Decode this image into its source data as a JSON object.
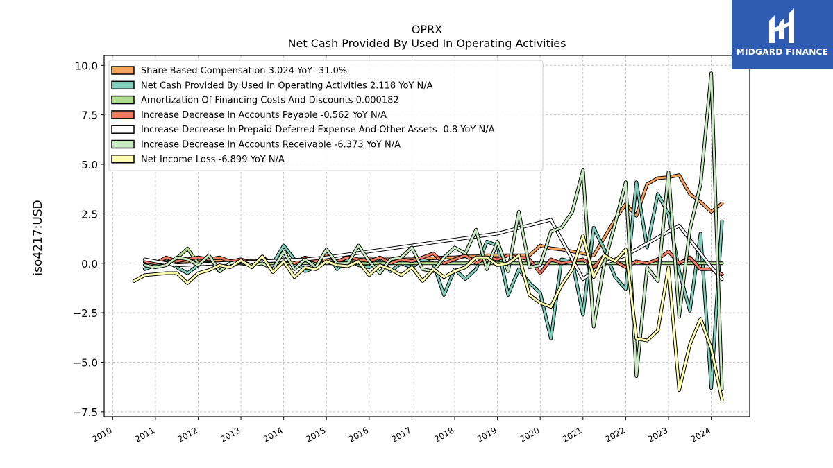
{
  "brand": {
    "name": "MIDGARD FINANCE",
    "bg_color": "#2f5bb3"
  },
  "chart_data": {
    "type": "line",
    "title": "OPRX",
    "subtitle": "Net Cash Provided By Used In Operating Activities",
    "ylabel": "iso4217:USD",
    "xlabel": "",
    "xlim": [
      2009.8,
      2024.9
    ],
    "ylim": [
      -7.75,
      10.5
    ],
    "x_ticks": [
      "2010",
      "2011",
      "2012",
      "2013",
      "2014",
      "2015",
      "2016",
      "2017",
      "2018",
      "2019",
      "2020",
      "2021",
      "2022",
      "2023",
      "2024"
    ],
    "y_ticks": [
      "10.0",
      "7.5",
      "5.0",
      "2.5",
      "0.0",
      "−2.5",
      "−5.0",
      "−7.5"
    ],
    "y_tick_values": [
      10,
      7.5,
      5,
      2.5,
      0,
      -2.5,
      -5,
      -7.5
    ],
    "grid": true,
    "legend_position": "top-left",
    "series": [
      {
        "name": "Share Based Compensation",
        "legend": "Share Based Compensation  3.024 YoY -31.0%",
        "color": "#f4a460",
        "x": [
          2010.75,
          2011.0,
          2011.25,
          2011.5,
          2011.75,
          2012.0,
          2012.25,
          2012.5,
          2012.75,
          2013.0,
          2013.25,
          2013.5,
          2013.75,
          2014.0,
          2014.25,
          2014.5,
          2014.75,
          2015.0,
          2015.25,
          2015.5,
          2015.75,
          2016.0,
          2016.25,
          2016.5,
          2016.75,
          2017.0,
          2017.25,
          2017.5,
          2017.75,
          2018.0,
          2018.25,
          2018.5,
          2018.75,
          2019.0,
          2019.25,
          2019.5,
          2019.75,
          2020.0,
          2020.25,
          2020.5,
          2020.75,
          2021.0,
          2021.25,
          2021.5,
          2021.75,
          2022.0,
          2022.25,
          2022.5,
          2022.75,
          2023.0,
          2023.25,
          2023.5,
          2023.75,
          2024.0,
          2024.25
        ],
        "y": [
          0.05,
          0.05,
          0.08,
          0.08,
          0.1,
          0.1,
          0.1,
          0.12,
          0.12,
          0.12,
          0.12,
          0.15,
          0.15,
          0.15,
          0.15,
          0.15,
          0.15,
          0.15,
          0.15,
          0.15,
          0.2,
          0.2,
          0.2,
          0.2,
          0.2,
          0.2,
          0.25,
          0.25,
          0.3,
          0.3,
          0.35,
          0.35,
          0.4,
          0.4,
          0.4,
          0.4,
          0.4,
          0.9,
          0.75,
          0.7,
          0.6,
          0.5,
          0.4,
          1.3,
          2.2,
          3.0,
          2.4,
          4.0,
          4.3,
          4.35,
          4.45,
          3.5,
          3.1,
          2.6,
          3.02
        ]
      },
      {
        "name": "Net Cash Provided By Used In Operating Activities",
        "legend": "Net Cash Provided By Used In Operating Activities  2.118 YoY N/A",
        "color": "#7fcdbb",
        "x": [
          2010.75,
          2011.0,
          2011.25,
          2011.5,
          2011.75,
          2012.0,
          2012.25,
          2012.5,
          2012.75,
          2013.0,
          2013.25,
          2013.5,
          2013.75,
          2014.0,
          2014.25,
          2014.5,
          2014.75,
          2015.0,
          2015.25,
          2015.5,
          2015.75,
          2016.0,
          2016.25,
          2016.5,
          2016.75,
          2017.0,
          2017.25,
          2017.5,
          2017.75,
          2018.0,
          2018.25,
          2018.5,
          2018.75,
          2019.0,
          2019.25,
          2019.5,
          2019.75,
          2020.0,
          2020.25,
          2020.5,
          2020.75,
          2021.0,
          2021.25,
          2021.5,
          2021.75,
          2022.0,
          2022.25,
          2022.5,
          2022.75,
          2023.0,
          2023.25,
          2023.5,
          2023.75,
          2024.0,
          2024.25
        ],
        "y": [
          -0.3,
          -0.1,
          0.1,
          -0.2,
          -0.5,
          -0.1,
          0.2,
          -0.4,
          0.0,
          0.0,
          -0.1,
          0.3,
          0.0,
          0.9,
          0.2,
          -0.4,
          -0.2,
          0.6,
          -0.3,
          0.2,
          -0.1,
          -0.2,
          0.3,
          -0.4,
          0.0,
          -0.2,
          0.2,
          0.0,
          -1.6,
          -0.3,
          -0.8,
          -0.3,
          1.1,
          0.9,
          -1.6,
          -0.3,
          -1.0,
          -1.5,
          -3.8,
          0.2,
          0.1,
          -2.6,
          1.8,
          0.7,
          -0.7,
          -1.3,
          4.1,
          0.8,
          3.5,
          2.5,
          -0.4,
          -2.4,
          1.5,
          -6.3,
          2.12
        ]
      },
      {
        "name": "Amortization Of Financing Costs And Discounts",
        "legend": "Amortization Of Financing Costs And Discounts  0.000182",
        "color": "#addd8e",
        "x": [
          2010.75,
          2011.25,
          2011.5,
          2011.75,
          2012.0,
          2012.5,
          2013.0,
          2016.5,
          2017.0,
          2017.5,
          2018.0,
          2018.5,
          2019.0,
          2019.5,
          2020.0,
          2020.5,
          2021.0,
          2021.5,
          2022.0,
          2022.5,
          2023.0,
          2023.5,
          2024.0,
          2024.25
        ],
        "y": [
          0.1,
          0.0,
          0.25,
          0.75,
          0.0,
          0.0,
          0.0,
          0.0,
          0.0,
          0.0,
          0.0,
          0.0,
          0.0,
          0.0,
          0.0,
          0.0,
          0.0,
          0.0,
          0.0,
          0.0,
          0.0,
          0.0,
          0.0,
          0.0
        ]
      },
      {
        "name": "Increase Decrease In Accounts Payable",
        "legend": "Increase Decrease In Accounts Payable  -0.562 YoY N/A",
        "color": "#f07860",
        "x": [
          2010.75,
          2011.0,
          2011.25,
          2011.5,
          2011.75,
          2012.0,
          2012.25,
          2012.5,
          2012.75,
          2013.0,
          2013.25,
          2013.5,
          2013.75,
          2014.0,
          2014.25,
          2014.5,
          2014.75,
          2015.0,
          2015.25,
          2015.5,
          2015.75,
          2016.0,
          2016.25,
          2016.5,
          2016.75,
          2017.0,
          2017.25,
          2017.5,
          2017.75,
          2018.0,
          2018.25,
          2018.5,
          2018.75,
          2019.0,
          2019.25,
          2019.5,
          2019.75,
          2020.0,
          2020.25,
          2020.5,
          2020.75,
          2021.0,
          2021.25,
          2021.5,
          2021.75,
          2022.0,
          2022.25,
          2022.5,
          2022.75,
          2023.0,
          2023.25,
          2023.5,
          2023.75,
          2024.0,
          2024.25
        ],
        "y": [
          0.1,
          0.0,
          0.3,
          0.1,
          0.2,
          0.3,
          0.2,
          0.3,
          0.1,
          0.2,
          0.0,
          0.2,
          0.1,
          0.2,
          0.0,
          0.3,
          0.1,
          0.4,
          0.1,
          0.3,
          0.2,
          0.1,
          0.3,
          0.0,
          0.2,
          0.1,
          0.3,
          0.5,
          0.0,
          0.2,
          0.4,
          0.0,
          0.3,
          0.2,
          0.4,
          0.3,
          0.2,
          -0.5,
          0.2,
          0.0,
          0.1,
          0.2,
          -0.2,
          0.4,
          0.1,
          -0.2,
          0.1,
          0.0,
          0.2,
          0.6,
          0.0,
          0.3,
          -0.3,
          -0.3,
          -0.56
        ]
      },
      {
        "name": "Increase Decrease In Prepaid Deferred Expense And Other Assets",
        "legend": "Increase Decrease In Prepaid Deferred Expense And Other Assets  -0.8 YoY N/A",
        "color": "#ffffff",
        "x": [
          2010.75,
          2011.5,
          2012.5,
          2013.5,
          2014.5,
          2015.0,
          2016.0,
          2017.0,
          2018.0,
          2019.0,
          2020.25,
          2021.0,
          2021.5,
          2022.0,
          2022.5,
          2023.0,
          2023.25,
          2023.75,
          2024.0,
          2024.25
        ],
        "y": [
          0.2,
          -0.1,
          0.0,
          0.1,
          0.2,
          0.3,
          0.6,
          0.9,
          1.2,
          1.5,
          2.2,
          -0.8,
          0.0,
          0.4,
          1.0,
          1.6,
          1.9,
          0.5,
          -0.2,
          -0.8
        ]
      },
      {
        "name": "Increase Decrease In Accounts Receivable",
        "legend": "Increase Decrease In Accounts Receivable  -6.373 YoY N/A",
        "color": "#c7e9c0",
        "x": [
          2010.75,
          2011.0,
          2011.25,
          2011.5,
          2011.75,
          2012.0,
          2012.25,
          2012.5,
          2012.75,
          2013.0,
          2013.25,
          2013.5,
          2013.75,
          2014.0,
          2014.25,
          2014.5,
          2014.75,
          2015.0,
          2015.25,
          2015.5,
          2015.75,
          2016.0,
          2016.25,
          2016.5,
          2016.75,
          2017.0,
          2017.25,
          2017.5,
          2017.75,
          2018.0,
          2018.25,
          2018.5,
          2018.75,
          2019.0,
          2019.25,
          2019.5,
          2019.75,
          2020.0,
          2020.25,
          2020.5,
          2020.75,
          2021.0,
          2021.25,
          2021.5,
          2021.75,
          2022.0,
          2022.25,
          2022.5,
          2022.75,
          2023.0,
          2023.25,
          2023.5,
          2023.75,
          2024.0,
          2024.25
        ],
        "y": [
          -0.1,
          -0.2,
          -0.1,
          0.3,
          0.2,
          -0.1,
          0.4,
          -0.4,
          0.0,
          0.1,
          -0.1,
          0.0,
          -0.3,
          0.6,
          -0.3,
          0.2,
          -0.2,
          0.7,
          0.0,
          0.0,
          0.9,
          0.1,
          -0.5,
          0.2,
          0.3,
          0.8,
          -0.3,
          -0.4,
          0.3,
          0.8,
          0.5,
          1.7,
          -0.3,
          1.1,
          -0.4,
          2.6,
          -0.2,
          -0.1,
          1.6,
          1.8,
          2.6,
          4.7,
          -3.2,
          0.0,
          2.0,
          4.1,
          -5.7,
          -0.2,
          -0.9,
          4.6,
          -2.7,
          1.7,
          4.0,
          9.6,
          -6.37
        ]
      },
      {
        "name": "Net Income Loss",
        "legend": "Net Income Loss  -6.899 YoY N/A",
        "color": "#ffffb0",
        "x": [
          2010.5,
          2010.75,
          2011.0,
          2011.25,
          2011.5,
          2011.75,
          2012.0,
          2012.25,
          2012.5,
          2012.75,
          2013.0,
          2013.25,
          2013.5,
          2013.75,
          2014.0,
          2014.25,
          2014.5,
          2014.75,
          2015.0,
          2015.25,
          2015.5,
          2015.75,
          2016.0,
          2016.25,
          2016.5,
          2016.75,
          2017.0,
          2017.25,
          2017.5,
          2017.75,
          2018.0,
          2018.25,
          2018.5,
          2018.75,
          2019.0,
          2019.25,
          2019.5,
          2019.75,
          2020.0,
          2020.25,
          2020.5,
          2020.75,
          2021.0,
          2021.25,
          2021.5,
          2021.75,
          2022.0,
          2022.25,
          2022.5,
          2022.75,
          2023.0,
          2023.25,
          2023.5,
          2023.75,
          2024.0,
          2024.25
        ],
        "y": [
          -0.9,
          -0.6,
          -0.55,
          -0.5,
          -0.5,
          -1.0,
          -0.5,
          -0.35,
          -0.1,
          -0.2,
          0.15,
          -0.2,
          0.35,
          -0.45,
          0.1,
          -0.7,
          -0.2,
          -0.3,
          0.1,
          -0.1,
          -0.15,
          0.1,
          -0.6,
          -0.1,
          -0.3,
          -0.6,
          -0.2,
          -0.9,
          -0.3,
          -0.7,
          -0.4,
          -0.2,
          0.3,
          0.3,
          -0.1,
          0.0,
          0.4,
          -1.6,
          -2.0,
          -2.2,
          -1.1,
          -0.3,
          1.4,
          -0.7,
          0.4,
          0.1,
          0.7,
          -3.8,
          -3.9,
          -3.4,
          -0.2,
          -6.4,
          -4.1,
          -2.8,
          -4.3,
          -6.9
        ]
      }
    ]
  }
}
